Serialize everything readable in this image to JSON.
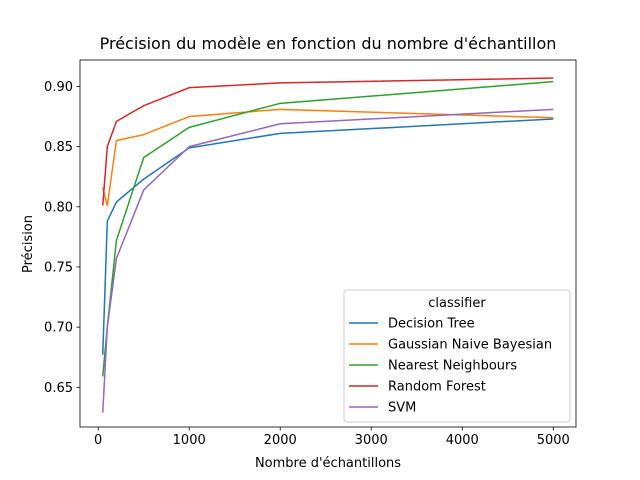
{
  "chart_data": {
    "type": "line",
    "title": "Précision du modèle en fonction du nombre d'échantillon",
    "xlabel": "Nombre d'échantillons",
    "ylabel": "Précision",
    "xlim": [
      -200,
      5250
    ],
    "ylim": [
      0.617,
      0.922
    ],
    "xticks": [
      0,
      1000,
      2000,
      3000,
      4000,
      5000
    ],
    "xtick_labels": [
      "0",
      "1000",
      "2000",
      "3000",
      "4000",
      "5000"
    ],
    "yticks": [
      0.65,
      0.7,
      0.75,
      0.8,
      0.85,
      0.9
    ],
    "ytick_labels": [
      "0.65",
      "0.70",
      "0.75",
      "0.80",
      "0.85",
      "0.90"
    ],
    "grid": false,
    "legend": {
      "title": "classifier",
      "placement": "bottom-right"
    },
    "series": [
      {
        "name": "Decision Tree",
        "color": "#1f77b4",
        "points": [
          [
            50,
            0.677
          ],
          [
            100,
            0.788
          ],
          [
            200,
            0.804
          ],
          [
            500,
            0.823
          ],
          [
            1000,
            0.849
          ],
          [
            2000,
            0.861
          ],
          [
            5000,
            0.873
          ]
        ]
      },
      {
        "name": "Gaussian Naive Bayesian",
        "color": "#ff7f0e",
        "points": [
          [
            50,
            0.816
          ],
          [
            100,
            0.801
          ],
          [
            200,
            0.855
          ],
          [
            500,
            0.86
          ],
          [
            1000,
            0.875
          ],
          [
            2000,
            0.881
          ],
          [
            5000,
            0.874
          ]
        ]
      },
      {
        "name": "Nearest Neighbours",
        "color": "#2ca02c",
        "points": [
          [
            50,
            0.659
          ],
          [
            100,
            0.7
          ],
          [
            200,
            0.772
          ],
          [
            500,
            0.841
          ],
          [
            1000,
            0.866
          ],
          [
            2000,
            0.886
          ],
          [
            5000,
            0.904
          ]
        ]
      },
      {
        "name": "Random Forest",
        "color": "#d62728",
        "points": [
          [
            50,
            0.801
          ],
          [
            100,
            0.85
          ],
          [
            200,
            0.871
          ],
          [
            500,
            0.884
          ],
          [
            1000,
            0.899
          ],
          [
            2000,
            0.903
          ],
          [
            5000,
            0.907
          ]
        ]
      },
      {
        "name": "SVM",
        "color": "#9467bd",
        "points": [
          [
            50,
            0.629
          ],
          [
            100,
            0.7
          ],
          [
            200,
            0.757
          ],
          [
            500,
            0.814
          ],
          [
            1000,
            0.85
          ],
          [
            2000,
            0.869
          ],
          [
            5000,
            0.881
          ]
        ]
      }
    ]
  }
}
